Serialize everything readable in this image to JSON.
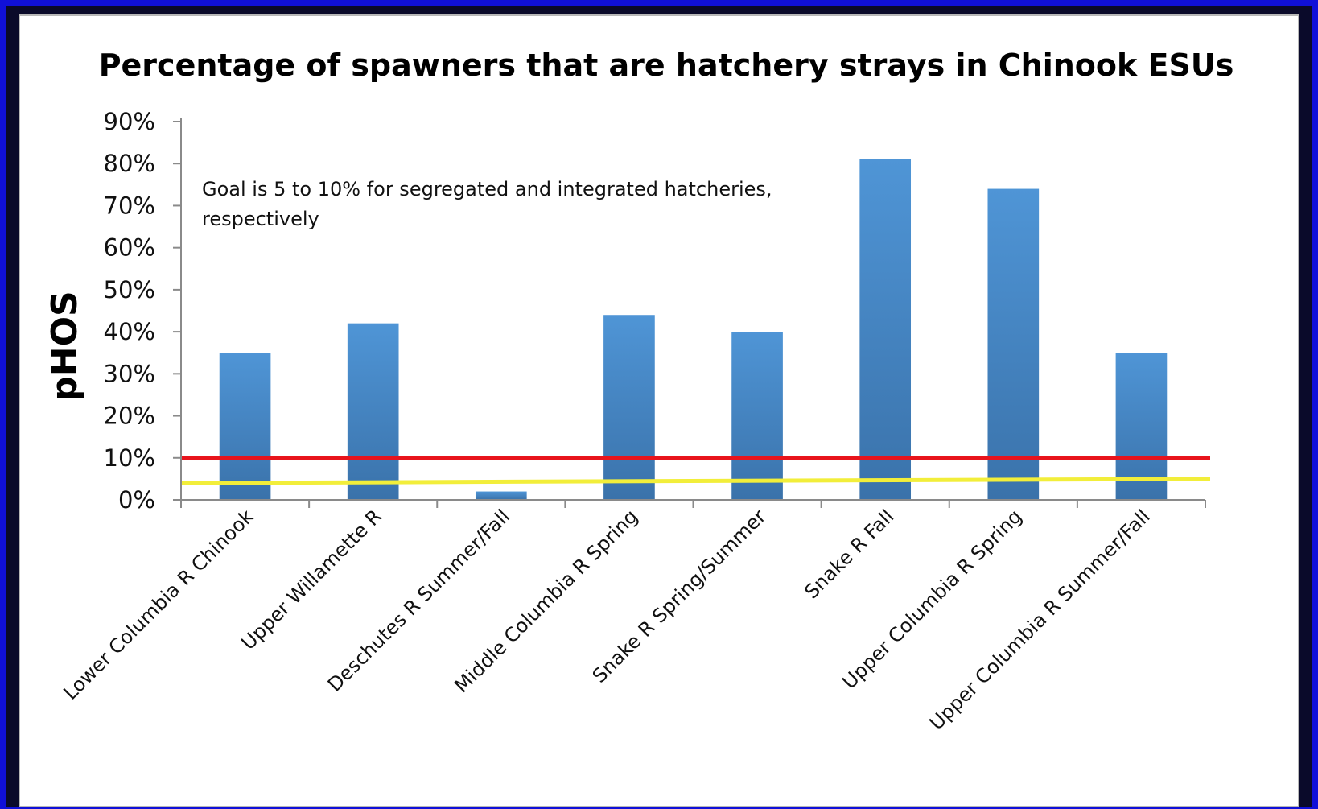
{
  "chart_data": {
    "type": "bar",
    "title": "Percentage of spawners that are hatchery strays in Chinook ESUs",
    "ylabel": "pHOS",
    "xlabel": "",
    "categories": [
      "Lower Columbia R Chinook",
      "Upper Willamette R",
      "Deschutes R Summer/Fall",
      "Middle Columbia R Spring",
      "Snake R Spring/Summer",
      "Snake R Fall",
      "Upper Columbia R Spring",
      "Upper Columbia R Summer/Fall"
    ],
    "values": [
      35,
      42,
      2,
      44,
      40,
      81,
      74,
      35
    ],
    "ylim": [
      0,
      90
    ],
    "yticks": [
      "0%",
      "10%",
      "20%",
      "30%",
      "40%",
      "50%",
      "60%",
      "70%",
      "80%",
      "90%"
    ],
    "grid": false,
    "annotation": [
      "Goal is 5 to 10% for segregated and integrated hatcheries,",
      "respectively"
    ],
    "reference_lines": [
      {
        "value": 10,
        "color": "#e8141c"
      },
      {
        "value": 4,
        "value_end": 5,
        "color": "#f2ee3a"
      }
    ],
    "bar_color": "#4a8ccc"
  }
}
